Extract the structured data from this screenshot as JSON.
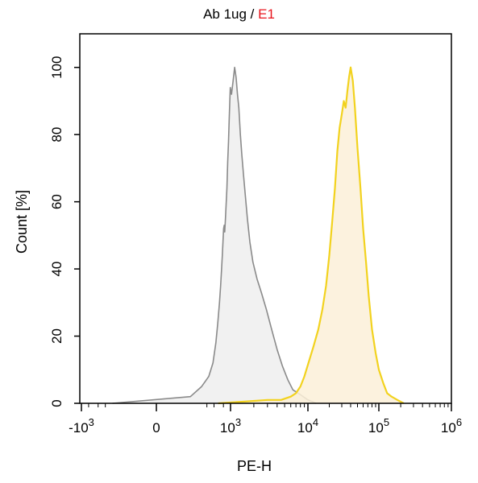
{
  "chart_data": {
    "type": "area",
    "title": {
      "part1": "Ab 1ug / ",
      "part2": "E1",
      "part2_color": "#e8141c"
    },
    "xlabel": "PE-H",
    "ylabel": "Count [%]",
    "x_scale": "biexponential",
    "xlim": [
      -1500,
      1500000
    ],
    "ylim": [
      0,
      110
    ],
    "grid": false,
    "x_ticks": [
      {
        "value": -1000,
        "base": "-10",
        "exp": "3"
      },
      {
        "value": 0,
        "base": "0",
        "exp": ""
      },
      {
        "value": 1000,
        "base": "10",
        "exp": "3"
      },
      {
        "value": 10000,
        "base": "10",
        "exp": "4"
      },
      {
        "value": 100000,
        "base": "10",
        "exp": "5"
      },
      {
        "value": 1000000,
        "base": "10",
        "exp": "6"
      }
    ],
    "y_ticks": [
      0,
      20,
      40,
      60,
      80,
      100
    ],
    "series": [
      {
        "name": "Ab 1ug",
        "line_color": "#8a8a8a",
        "fill_color": "#eeeeee",
        "x": [
          -50,
          20,
          60,
          120,
          180,
          240,
          290,
          340,
          380,
          420,
          450,
          480,
          510,
          540,
          570,
          610,
          650,
          700,
          760,
          820,
          880,
          930,
          980,
          1030,
          1080,
          1130,
          1180,
          1230,
          1280,
          1340,
          1400,
          1470,
          1550,
          1650,
          1780,
          1950,
          2200,
          2500,
          2900,
          3400,
          4000,
          4700,
          5500,
          6400,
          7500,
          8700,
          10000,
          11500,
          13000
        ],
        "y": [
          0,
          2,
          5,
          8,
          12,
          18,
          24,
          30,
          35,
          40,
          44,
          48,
          52,
          53,
          51,
          55,
          59,
          64,
          72,
          78,
          85,
          90,
          94,
          92,
          96,
          100,
          97,
          92,
          88,
          80,
          74,
          68,
          62,
          55,
          48,
          42,
          37,
          33,
          28,
          22,
          16,
          11,
          7,
          4,
          3,
          2,
          1,
          0.5,
          0
        ]
      },
      {
        "name": "E1",
        "line_color": "#f2d21e",
        "fill_color": "#fbf0d8",
        "x": [
          300,
          1500,
          3000,
          4500,
          6000,
          7000,
          8000,
          9000,
          10500,
          12000,
          14000,
          16000,
          18000,
          20000,
          22000,
          24000,
          26000,
          28000,
          30000,
          32000,
          34000,
          36000,
          38000,
          40000,
          43000,
          46000,
          50000,
          55000,
          60000,
          66000,
          72000,
          80000,
          90000,
          100000,
          115000,
          130000,
          150000,
          180000,
          220000
        ],
        "y": [
          0,
          0.5,
          1,
          1,
          2,
          3,
          5,
          8,
          13,
          17,
          22,
          28,
          35,
          44,
          54,
          64,
          75,
          82,
          86,
          90,
          88,
          93,
          97,
          100,
          96,
          88,
          76,
          64,
          52,
          42,
          32,
          22,
          15,
          10,
          6,
          3,
          2,
          1,
          0
        ]
      }
    ]
  }
}
